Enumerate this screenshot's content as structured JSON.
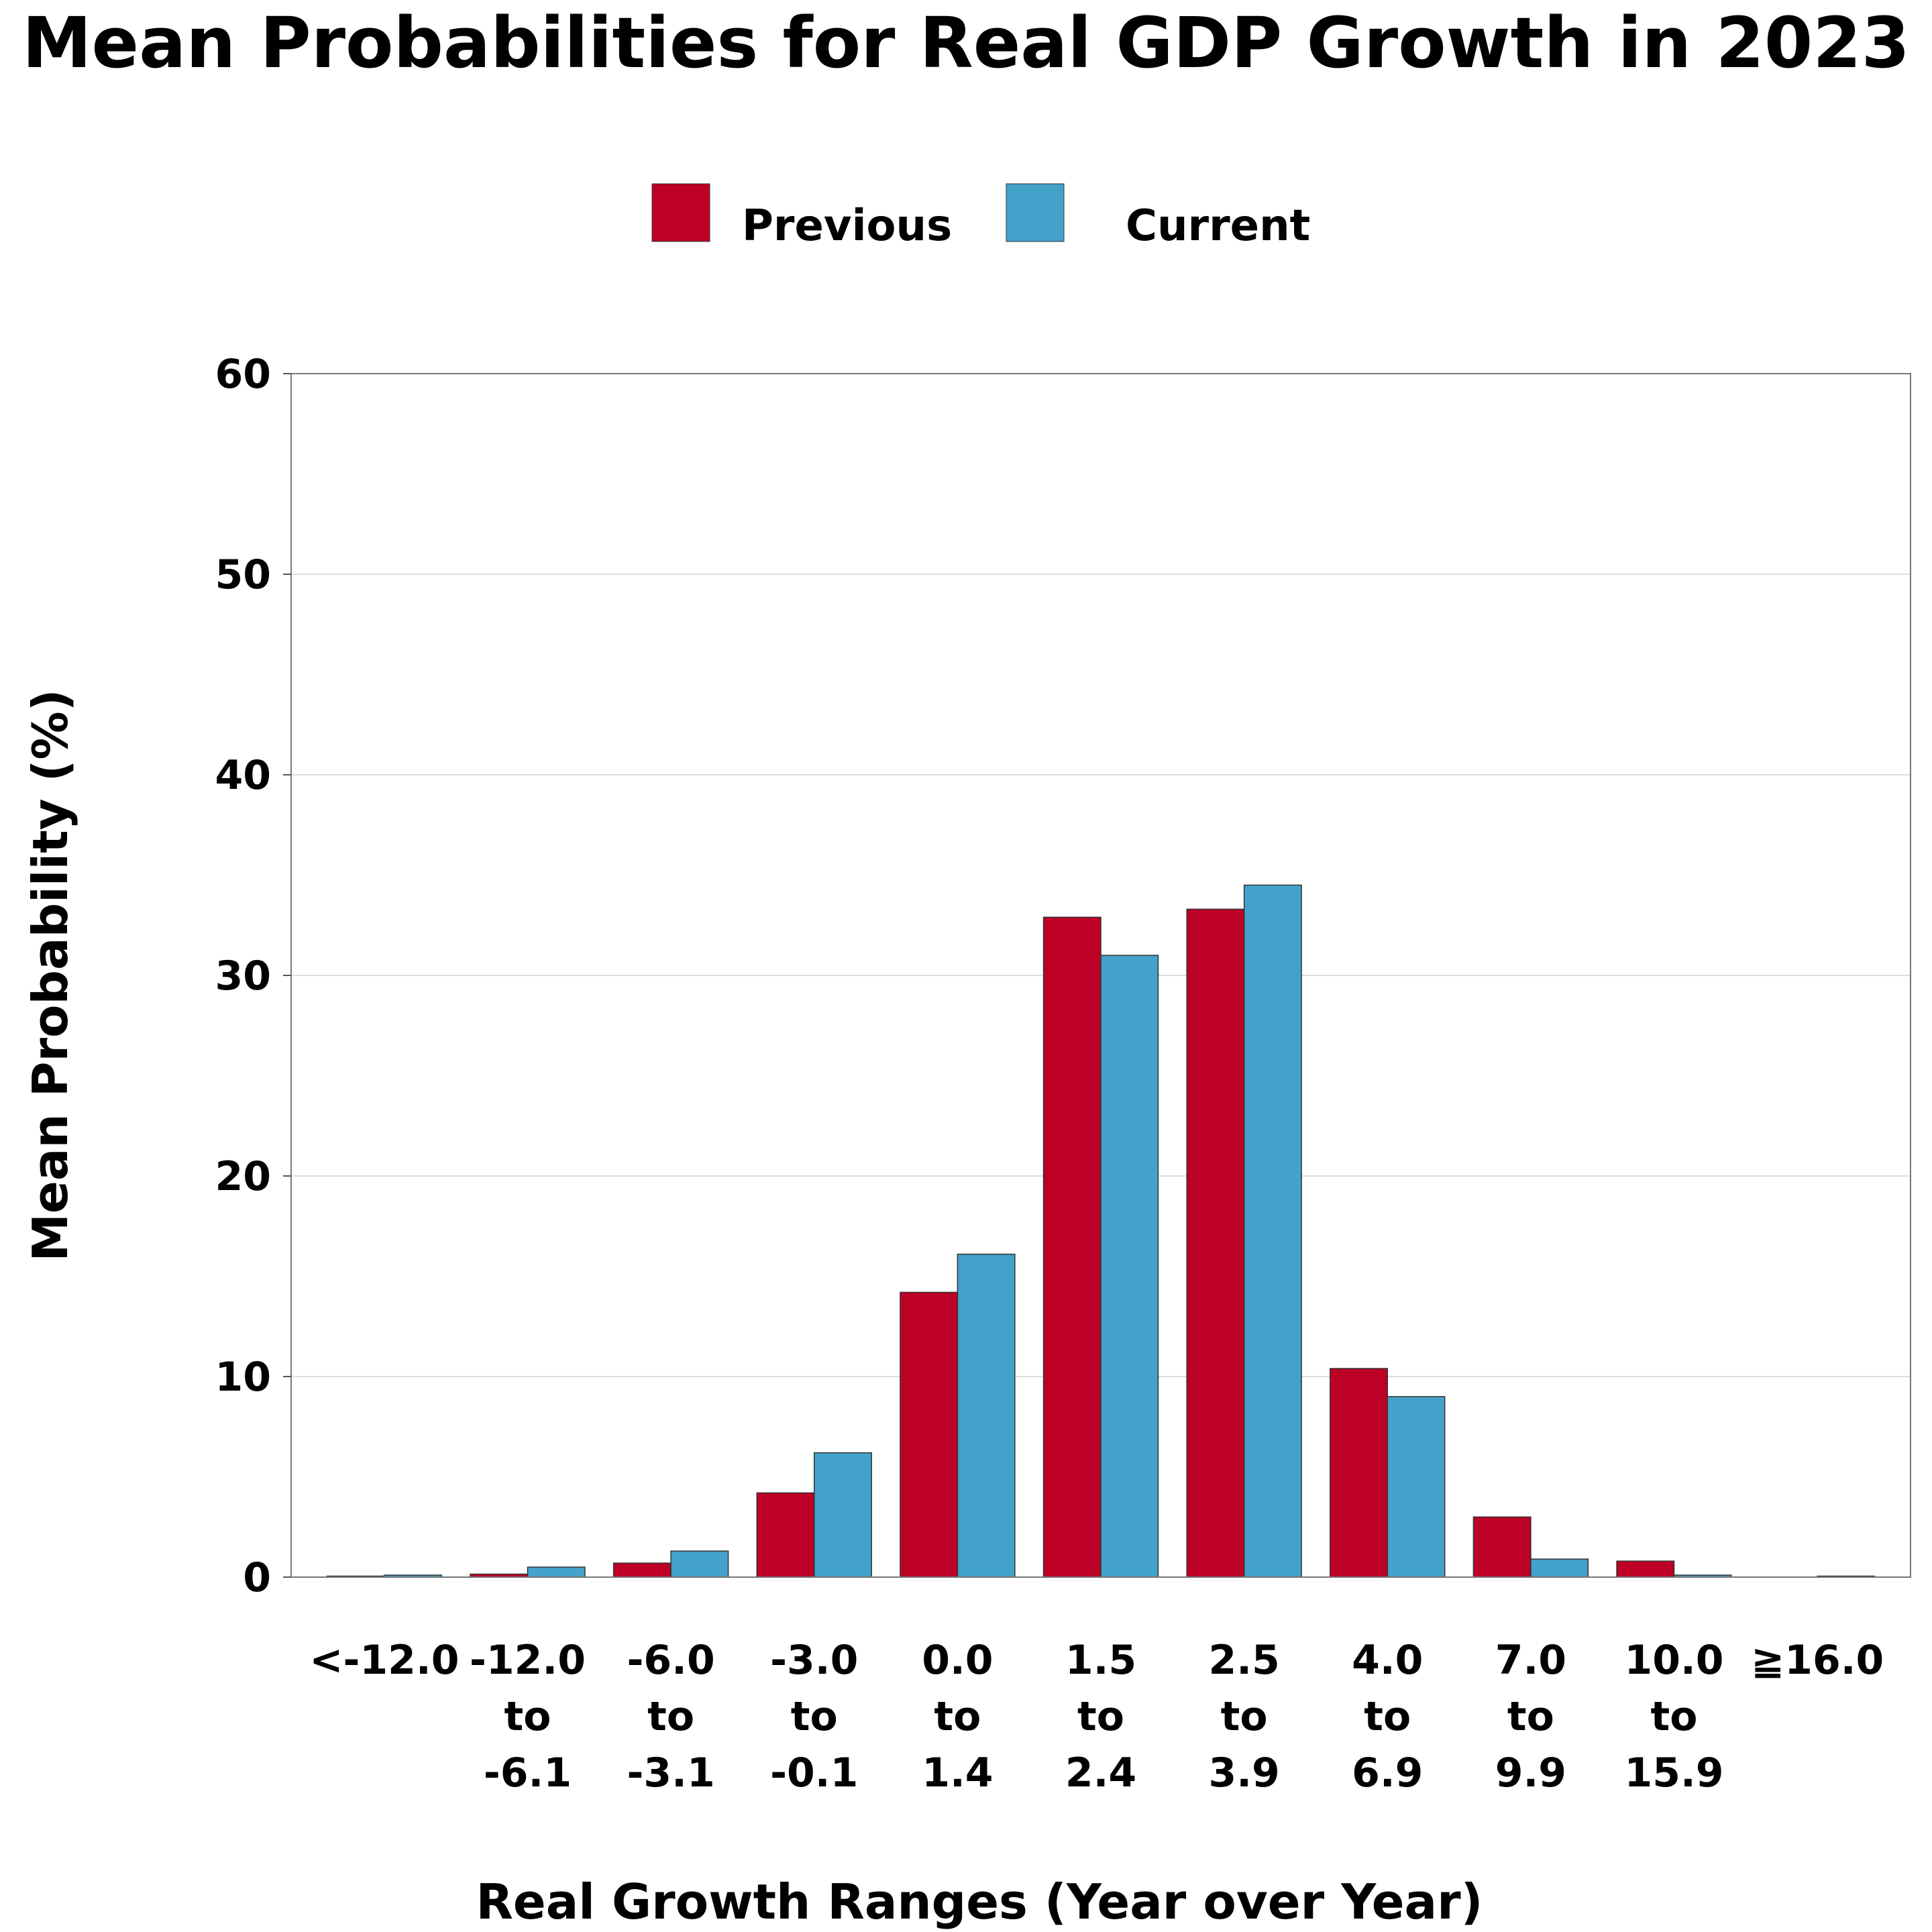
{
  "chart_data": {
    "type": "bar",
    "title": "Mean Probabilities for Real GDP Growth in 2023",
    "xlabel": "Real Growth Ranges (Year over Year)",
    "ylabel": "Mean Probability (%)",
    "ylim": [
      0,
      60
    ],
    "yticks": [
      0,
      10,
      20,
      30,
      40,
      50,
      60
    ],
    "grid": "horizontal",
    "legend_position": "top",
    "categories": [
      "<-12.0",
      "-12.0 to -6.1",
      "-6.0 to -3.1",
      "-3.0 to -0.1",
      "0.0 to 1.4",
      "1.5 to 2.4",
      "2.5 to 3.9",
      "4.0 to 6.9",
      "7.0 to 9.9",
      "10.0 to 15.9",
      "≧16.0"
    ],
    "category_lines": [
      [
        "<-12.0"
      ],
      [
        "-12.0",
        "to",
        "-6.1"
      ],
      [
        "-6.0",
        "to",
        "-3.1"
      ],
      [
        "-3.0",
        "to",
        "-0.1"
      ],
      [
        "0.0",
        "to",
        "1.4"
      ],
      [
        "1.5",
        "to",
        "2.4"
      ],
      [
        "2.5",
        "to",
        "3.9"
      ],
      [
        "4.0",
        "to",
        "6.9"
      ],
      [
        "7.0",
        "to",
        "9.9"
      ],
      [
        "10.0",
        "to",
        "15.9"
      ],
      [
        "≧16.0"
      ]
    ],
    "series": [
      {
        "name": "Previous",
        "color": "#BD0026",
        "values": [
          0.05,
          0.15,
          0.7,
          4.2,
          14.2,
          32.9,
          33.3,
          10.4,
          3.0,
          0.8,
          0.0
        ]
      },
      {
        "name": "Current",
        "color": "#43A2CA",
        "values": [
          0.1,
          0.5,
          1.3,
          6.2,
          16.1,
          31.0,
          34.5,
          9.0,
          0.9,
          0.1,
          0.05
        ]
      }
    ]
  }
}
